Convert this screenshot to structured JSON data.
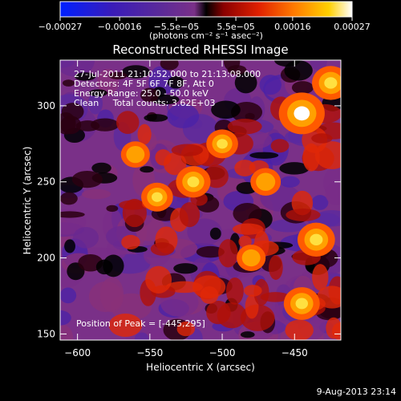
{
  "chart_data": {
    "type": "heatmap",
    "title": "Reconstructed RHESSI Image",
    "xlabel": "Heliocentric X (arcsec)",
    "ylabel": "Heliocentric Y (arcsec)",
    "xlim": [
      -612,
      -418
    ],
    "ylim": [
      146,
      330
    ],
    "xticks": [
      -600,
      -550,
      -500,
      -450
    ],
    "yticks": [
      150,
      200,
      250,
      300
    ],
    "xtick_labels": [
      "−600",
      "−550",
      "−500",
      "−450"
    ],
    "ytick_labels": [
      "150",
      "200",
      "250",
      "300"
    ],
    "colorbar": {
      "range": [
        -0.00027,
        0.00027
      ],
      "ticks": [
        -0.00027,
        -0.00016,
        -5.5e-05,
        5.5e-05,
        0.00016,
        0.00027
      ],
      "tick_labels": [
        "−0.00027",
        "−0.00016",
        "−5.5e−05",
        "5.5e−05",
        "0.00016",
        "0.00027"
      ],
      "unit_label": "(photons cm⁻² s⁻¹ asec⁻²)",
      "colors": [
        "#0020ff",
        "#3a1cb8",
        "#5a2a9a",
        "#7a3088",
        "#000000",
        "#8a0000",
        "#e02000",
        "#ff7a00",
        "#ffd000",
        "#ffffff"
      ]
    },
    "annotations": [
      "27-Jul-2011 21:10:52.000 to 21:13:08.000",
      "Detectors: 4F 5F 6F 7F 8F, Att 0",
      "Energy Range: 25.0 - 50.0 keV",
      "Clean     Total counts: 3.62E+03"
    ],
    "peak_label": "Position of Peak = [-445,295]",
    "peak": [
      -445,
      295
    ],
    "bright_sources": [
      {
        "x": -445,
        "y": 295,
        "strength": 1.0
      },
      {
        "x": -425,
        "y": 315,
        "strength": 0.7
      },
      {
        "x": -435,
        "y": 212,
        "strength": 0.7
      },
      {
        "x": -445,
        "y": 170,
        "strength": 0.65
      },
      {
        "x": -520,
        "y": 250,
        "strength": 0.6
      },
      {
        "x": -500,
        "y": 275,
        "strength": 0.5
      },
      {
        "x": -545,
        "y": 240,
        "strength": 0.5
      },
      {
        "x": -470,
        "y": 250,
        "strength": 0.45
      },
      {
        "x": -560,
        "y": 268,
        "strength": 0.4
      },
      {
        "x": -480,
        "y": 200,
        "strength": 0.4
      }
    ]
  },
  "footer": {
    "timestamp": "9-Aug-2013 23:14"
  }
}
